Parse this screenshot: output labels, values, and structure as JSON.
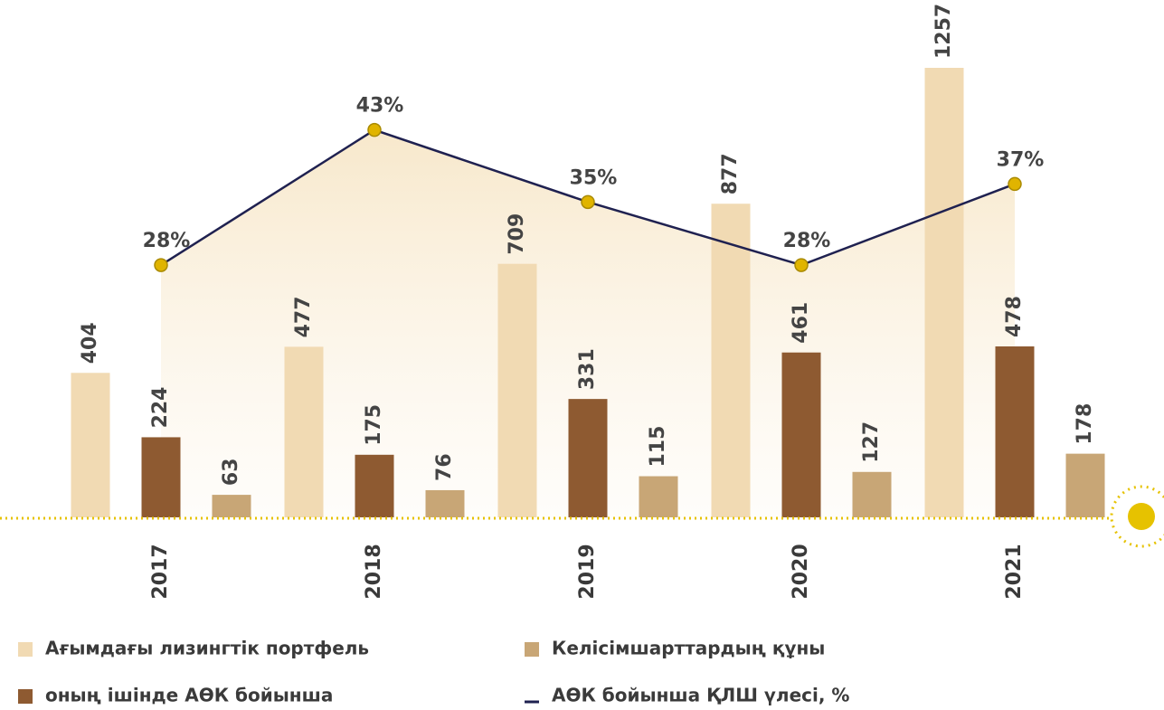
{
  "chart_data": {
    "type": "bar",
    "categories": [
      "2017",
      "2018",
      "2019",
      "2020",
      "2021"
    ],
    "series": [
      {
        "name": "Ағымдағы лизингтік портфель",
        "color": "#f1dab3",
        "values": [
          404,
          477,
          709,
          877,
          1257
        ]
      },
      {
        "name": "оның ішінде АӨК бойынша",
        "color": "#8e5a31",
        "values": [
          224,
          175,
          331,
          461,
          478
        ]
      },
      {
        "name": "Келісімшарттардың құны",
        "color": "#c8a676",
        "values": [
          63,
          76,
          115,
          127,
          178
        ]
      },
      {
        "name": "АӨК бойынша ҚЛШ үлесі, %",
        "type": "line",
        "axis": "y2",
        "color": "#1f2150",
        "marker_color": "#e0b400",
        "values": [
          28,
          43,
          35,
          28,
          37
        ],
        "value_labels": [
          "28%",
          "43%",
          "35%",
          "28%",
          "37%"
        ]
      }
    ],
    "ylim": [
      0,
      1300
    ],
    "y2lim": [
      0,
      51.6
    ],
    "legend": "bottom"
  }
}
